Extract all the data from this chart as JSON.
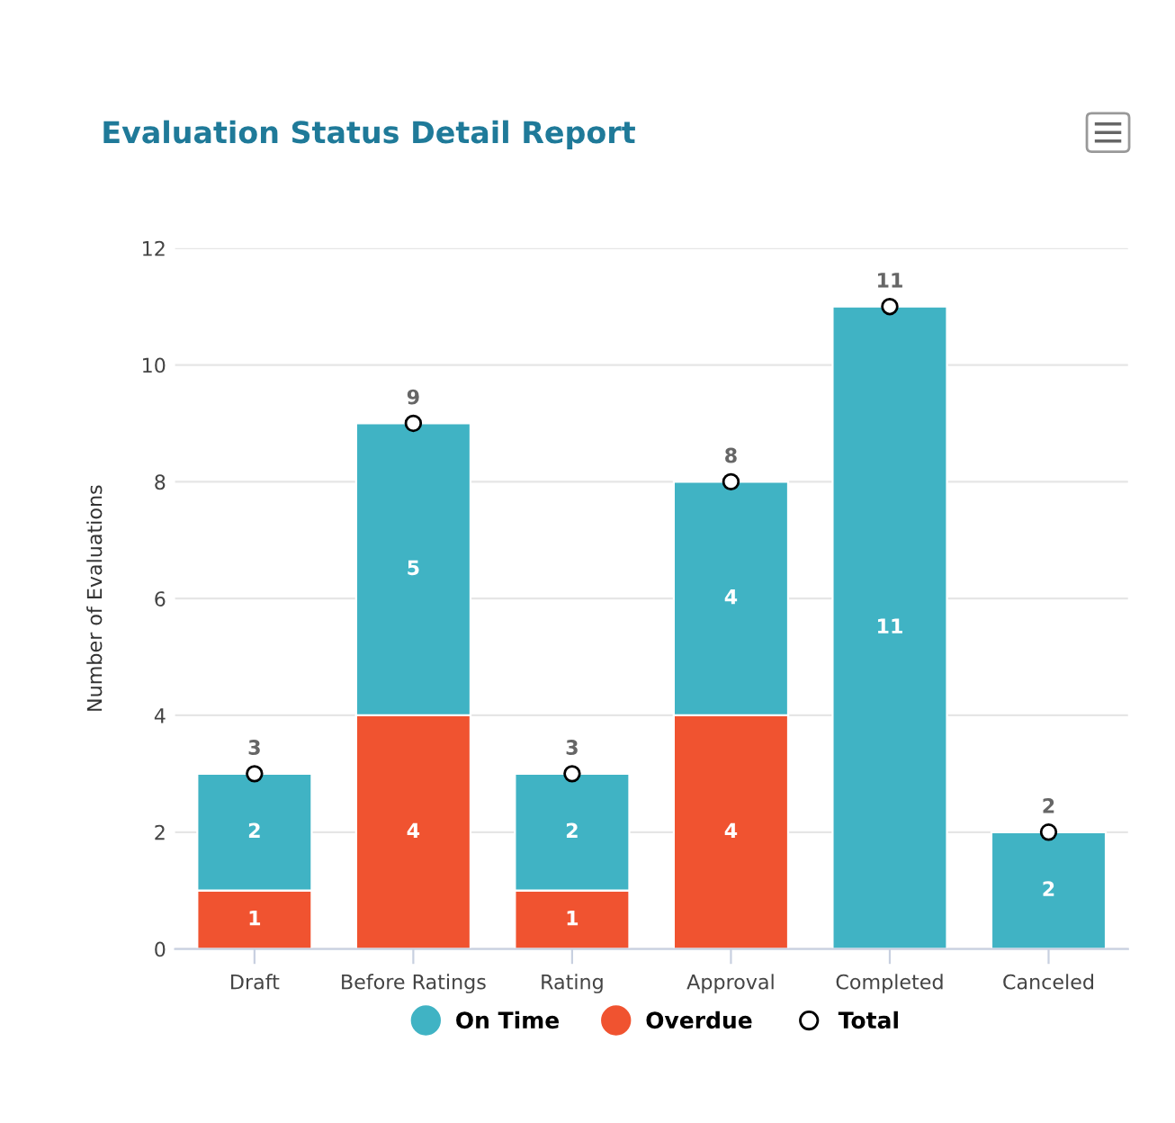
{
  "chart_data": {
    "type": "bar",
    "title": "Evaluation Status Detail Report",
    "ylabel": "Number of Evaluations",
    "categories": [
      "Draft",
      "Before Ratings",
      "Rating",
      "Approval",
      "Completed",
      "Canceled"
    ],
    "stacked": true,
    "ylim": [
      0,
      12
    ],
    "yticks": [
      0,
      2,
      4,
      6,
      8,
      10,
      12
    ],
    "grid": "y",
    "legend": "bottom",
    "series": [
      {
        "name": "Overdue",
        "color": "#f05330",
        "values": [
          1,
          4,
          1,
          4,
          0,
          0
        ],
        "value_labels": [
          "1",
          "4",
          "1",
          "4",
          null,
          null
        ]
      },
      {
        "name": "On Time",
        "color": "#40b3c4",
        "values": [
          2,
          5,
          2,
          4,
          11,
          2
        ],
        "value_labels": [
          "2",
          "5",
          "2",
          "4",
          "11",
          "2"
        ]
      },
      {
        "name": "Total",
        "type": "scatter",
        "marker": "circle",
        "color": "#ffffff",
        "values": [
          3,
          9,
          3,
          8,
          11,
          2
        ],
        "value_labels": [
          "3",
          "9",
          "3",
          "8",
          "11",
          "2"
        ]
      }
    ]
  }
}
